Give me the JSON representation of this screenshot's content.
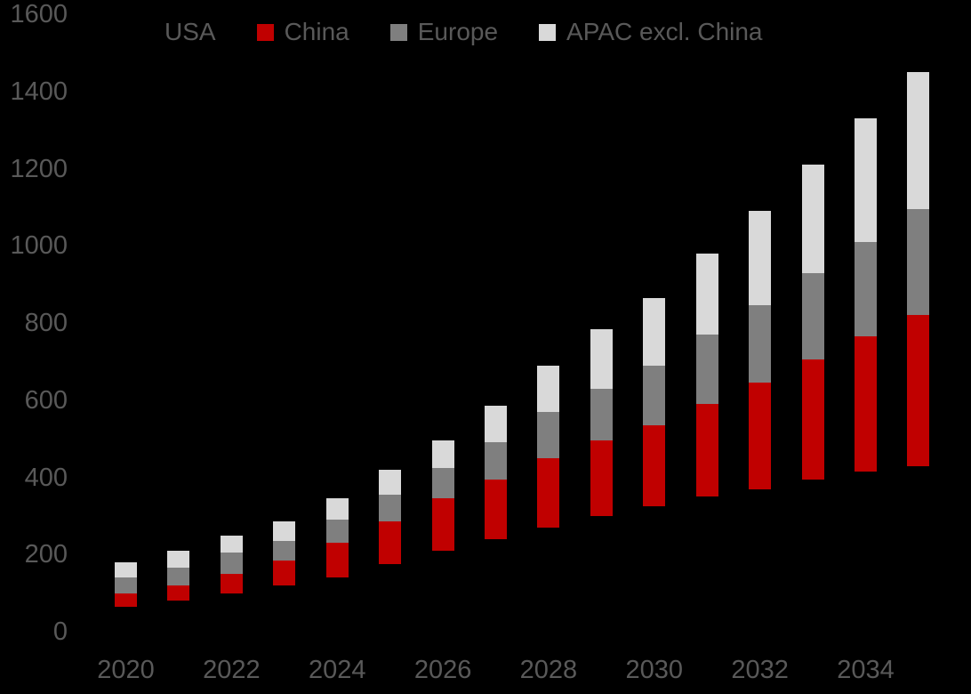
{
  "background_color": "#000000",
  "text_color": "#595959",
  "chart_data": {
    "type": "bar",
    "stacked": true,
    "title": "",
    "xlabel": "",
    "ylabel": "",
    "categories": [
      "2020",
      "2021",
      "2022",
      "2023",
      "2024",
      "2025",
      "2026",
      "2027",
      "2028",
      "2029",
      "2030",
      "2031",
      "2032",
      "2033",
      "2034",
      "2035"
    ],
    "x_tick_labels": [
      "2020",
      "2022",
      "2024",
      "2026",
      "2028",
      "2030",
      "2032",
      "2034"
    ],
    "y_ticks": [
      0,
      200,
      400,
      600,
      800,
      1000,
      1200,
      1400,
      1600
    ],
    "ylim": [
      0,
      1600
    ],
    "grid": false,
    "legend_position": "top",
    "series": [
      {
        "name": "USA",
        "color": "#000000",
        "values": [
          65,
          80,
          100,
          120,
          140,
          175,
          210,
          240,
          270,
          300,
          325,
          350,
          370,
          395,
          415,
          430
        ]
      },
      {
        "name": "China",
        "color": "#C00000",
        "values": [
          35,
          40,
          50,
          65,
          90,
          110,
          135,
          155,
          180,
          195,
          210,
          240,
          275,
          310,
          350,
          390
        ]
      },
      {
        "name": "Europe",
        "color": "#7F7F7F",
        "values": [
          40,
          45,
          55,
          50,
          60,
          70,
          80,
          95,
          120,
          135,
          155,
          180,
          200,
          225,
          245,
          275
        ]
      },
      {
        "name": "APAC excl. China",
        "color": "#D9D9D9",
        "values": [
          40,
          45,
          45,
          50,
          55,
          65,
          70,
          95,
          120,
          155,
          175,
          210,
          245,
          280,
          320,
          355
        ]
      }
    ],
    "totals": [
      180,
      210,
      250,
      285,
      345,
      420,
      495,
      585,
      690,
      785,
      865,
      980,
      1090,
      1210,
      1330,
      1450
    ]
  }
}
